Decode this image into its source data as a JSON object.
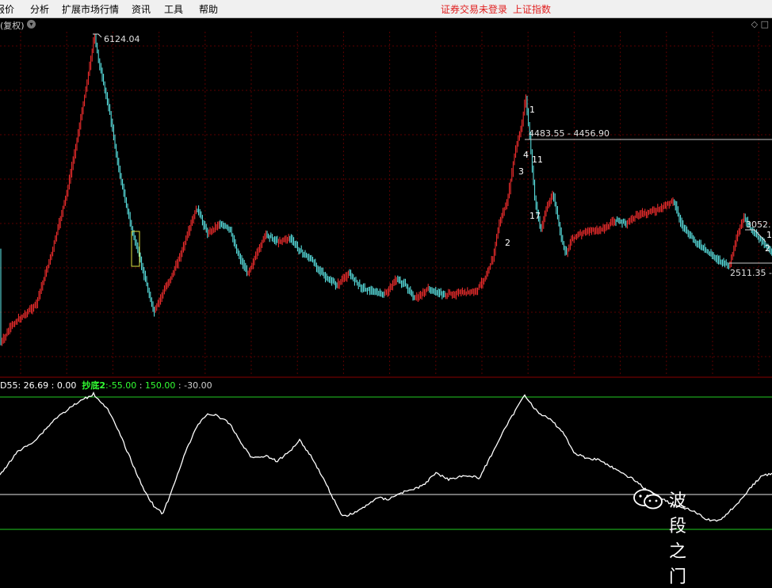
{
  "menubar": {
    "items": [
      "报价",
      "分析",
      "扩展市场行情",
      "资讯",
      "工具",
      "帮助"
    ],
    "status": "证券交易未登录",
    "index_name": "上证指数"
  },
  "subbar": {
    "label": "(复权)",
    "dropdown_icon": "chevron-down-icon",
    "corner_icons": [
      "diamond-icon",
      "square-icon"
    ]
  },
  "price_chart": {
    "high_label": "6124.04",
    "range_label": "4483.55 - 4456.90",
    "right_label_1": "3052.",
    "right_label_2": "2511.35 -",
    "wave_labels": [
      "1",
      "11",
      "4",
      "3",
      "17",
      "2",
      "2",
      "1"
    ],
    "colors": {
      "up": "#ff3030",
      "down": "#5ff0f0",
      "grid": "#5a0000"
    }
  },
  "indicator": {
    "name": "D55",
    "value": "26.69",
    "value2": "0.00",
    "signal_name": "抄底2",
    "levels": [
      "-55.00",
      "150.00",
      "-30.00"
    ],
    "colors": {
      "name": "#ffffff",
      "signal": "#33ff33",
      "levels": "#cfcfcf"
    }
  },
  "watermark": {
    "text": "波段之门",
    "icon": "wechat-icon"
  }
}
